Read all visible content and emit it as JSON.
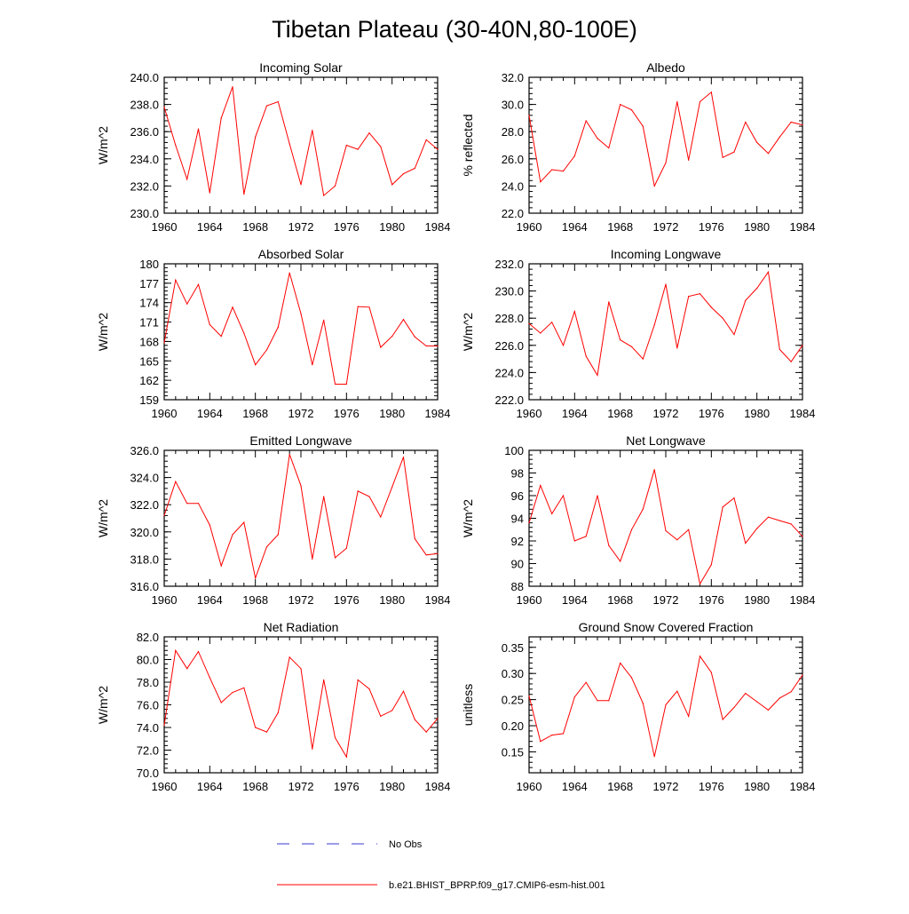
{
  "title": "Tibetan Plateau (30-40N,80-100E)",
  "legend": {
    "obs_label": "No Obs",
    "obs_color": "#3a3ad0",
    "model_label": "b.e21.BHIST_BPRP.f09_g17.CMIP6-esm-hist.001",
    "model_color": "#ff0000"
  },
  "chart_data": [
    {
      "type": "line",
      "title": "Incoming Solar",
      "ylabel": "W/m^2",
      "xlim": [
        1960,
        1984
      ],
      "x_ticks": [
        "1960",
        "1964",
        "1968",
        "1972",
        "1976",
        "1980",
        "1984"
      ],
      "ylim": [
        230,
        240
      ],
      "y_ticks": [
        "230.0",
        "232.0",
        "234.0",
        "236.0",
        "238.0",
        "240.0"
      ],
      "grid": false,
      "series": [
        {
          "name": "b.e21.BHIST_BPRP.f09_g17.CMIP6-esm-hist.001",
          "x": [
            1960,
            1961,
            1962,
            1963,
            1964,
            1965,
            1966,
            1967,
            1968,
            1969,
            1970,
            1971,
            1972,
            1973,
            1974,
            1975,
            1976,
            1977,
            1978,
            1979,
            1980,
            1981,
            1982,
            1983,
            1984
          ],
          "values": [
            237.8,
            235.0,
            232.5,
            236.2,
            231.5,
            237.0,
            239.3,
            231.4,
            235.6,
            237.9,
            238.2,
            235.1,
            232.1,
            236.1,
            231.3,
            232.0,
            235.0,
            234.7,
            235.9,
            234.9,
            232.1,
            232.9,
            233.3,
            235.4,
            234.7
          ]
        }
      ]
    },
    {
      "type": "line",
      "title": "Albedo",
      "ylabel": "% reflected",
      "xlim": [
        1960,
        1984
      ],
      "x_ticks": [
        "1960",
        "1964",
        "1968",
        "1972",
        "1976",
        "1980",
        "1984"
      ],
      "ylim": [
        22,
        32
      ],
      "y_ticks": [
        "22.0",
        "24.0",
        "26.0",
        "28.0",
        "30.0",
        "32.0"
      ],
      "grid": false,
      "series": [
        {
          "name": "b.e21.BHIST_BPRP.f09_g17.CMIP6-esm-hist.001",
          "x": [
            1960,
            1961,
            1962,
            1963,
            1964,
            1965,
            1966,
            1967,
            1968,
            1969,
            1970,
            1971,
            1972,
            1973,
            1974,
            1975,
            1976,
            1977,
            1978,
            1979,
            1980,
            1981,
            1982,
            1983,
            1984
          ],
          "values": [
            29.2,
            24.3,
            25.2,
            25.1,
            26.2,
            28.8,
            27.5,
            26.8,
            30.0,
            29.6,
            28.4,
            24.0,
            25.7,
            30.2,
            25.9,
            30.2,
            30.9,
            26.1,
            26.5,
            28.7,
            27.2,
            26.4,
            27.6,
            28.7,
            28.5
          ]
        }
      ]
    },
    {
      "type": "line",
      "title": "Absorbed Solar",
      "ylabel": "W/m^2",
      "xlim": [
        1960,
        1984
      ],
      "x_ticks": [
        "1960",
        "1964",
        "1968",
        "1972",
        "1976",
        "1980",
        "1984"
      ],
      "ylim": [
        159,
        180
      ],
      "y_ticks": [
        "159",
        "162",
        "165",
        "168",
        "171",
        "174",
        "177",
        "180"
      ],
      "grid": false,
      "series": [
        {
          "name": "b.e21.BHIST_BPRP.f09_g17.CMIP6-esm-hist.001",
          "x": [
            1960,
            1961,
            1962,
            1963,
            1964,
            1965,
            1966,
            1967,
            1968,
            1969,
            1970,
            1971,
            1972,
            1973,
            1974,
            1975,
            1976,
            1977,
            1978,
            1979,
            1980,
            1981,
            1982,
            1983,
            1984
          ],
          "values": [
            167.8,
            177.5,
            173.8,
            176.8,
            170.6,
            168.8,
            173.3,
            169.3,
            164.4,
            166.7,
            170.2,
            178.6,
            172.3,
            164.4,
            171.3,
            161.4,
            161.4,
            173.4,
            173.3,
            167.1,
            168.8,
            171.4,
            168.7,
            167.3,
            167.3
          ]
        }
      ]
    },
    {
      "type": "line",
      "title": "Incoming Longwave",
      "ylabel": "W/m^2",
      "xlim": [
        1960,
        1984
      ],
      "x_ticks": [
        "1960",
        "1964",
        "1968",
        "1972",
        "1976",
        "1980",
        "1984"
      ],
      "ylim": [
        222,
        232
      ],
      "y_ticks": [
        "222.0",
        "224.0",
        "226.0",
        "228.0",
        "230.0",
        "232.0"
      ],
      "grid": false,
      "series": [
        {
          "name": "b.e21.BHIST_BPRP.f09_g17.CMIP6-esm-hist.001",
          "x": [
            1960,
            1961,
            1962,
            1963,
            1964,
            1965,
            1966,
            1967,
            1968,
            1969,
            1970,
            1971,
            1972,
            1973,
            1974,
            1975,
            1976,
            1977,
            1978,
            1979,
            1980,
            1981,
            1982,
            1983,
            1984
          ],
          "values": [
            227.6,
            226.9,
            227.7,
            226.0,
            228.5,
            225.2,
            223.8,
            229.2,
            226.4,
            225.9,
            225.0,
            227.5,
            230.5,
            225.8,
            229.6,
            229.8,
            228.8,
            228.0,
            226.8,
            229.3,
            230.2,
            231.4,
            225.7,
            224.8,
            226.0
          ]
        }
      ]
    },
    {
      "type": "line",
      "title": "Emitted Longwave",
      "ylabel": "W/m^2",
      "xlim": [
        1960,
        1984
      ],
      "x_ticks": [
        "1960",
        "1964",
        "1968",
        "1972",
        "1976",
        "1980",
        "1984"
      ],
      "ylim": [
        316,
        326
      ],
      "y_ticks": [
        "316.0",
        "318.0",
        "320.0",
        "322.0",
        "324.0",
        "326.0"
      ],
      "grid": false,
      "series": [
        {
          "name": "b.e21.BHIST_BPRP.f09_g17.CMIP6-esm-hist.001",
          "x": [
            1960,
            1961,
            1962,
            1963,
            1964,
            1965,
            1966,
            1967,
            1968,
            1969,
            1970,
            1971,
            1972,
            1973,
            1974,
            1975,
            1976,
            1977,
            1978,
            1979,
            1980,
            1981,
            1982,
            1983,
            1984
          ],
          "values": [
            321.2,
            323.7,
            322.1,
            322.1,
            320.5,
            317.5,
            319.8,
            320.7,
            316.6,
            318.9,
            319.8,
            325.7,
            323.4,
            318.0,
            322.6,
            318.1,
            318.8,
            323.0,
            322.6,
            321.1,
            323.3,
            325.5,
            319.5,
            318.3,
            318.4
          ]
        }
      ]
    },
    {
      "type": "line",
      "title": "Net Longwave",
      "ylabel": "W/m^2",
      "xlim": [
        1960,
        1984
      ],
      "x_ticks": [
        "1960",
        "1964",
        "1968",
        "1972",
        "1976",
        "1980",
        "1984"
      ],
      "ylim": [
        88,
        100
      ],
      "y_ticks": [
        "88",
        "90",
        "92",
        "94",
        "96",
        "98",
        "100"
      ],
      "grid": false,
      "series": [
        {
          "name": "b.e21.BHIST_BPRP.f09_g17.CMIP6-esm-hist.001",
          "x": [
            1960,
            1961,
            1962,
            1963,
            1964,
            1965,
            1966,
            1967,
            1968,
            1969,
            1970,
            1971,
            1972,
            1973,
            1974,
            1975,
            1976,
            1977,
            1978,
            1979,
            1980,
            1981,
            1982,
            1983,
            1984
          ],
          "values": [
            93.6,
            96.9,
            94.4,
            96.0,
            92.0,
            92.4,
            96.0,
            91.6,
            90.2,
            93.0,
            94.8,
            98.3,
            92.9,
            92.1,
            93.0,
            88.2,
            89.9,
            95.0,
            95.8,
            91.8,
            93.1,
            94.1,
            93.8,
            93.5,
            92.4
          ]
        }
      ]
    },
    {
      "type": "line",
      "title": "Net Radiation",
      "ylabel": "W/m^2",
      "xlim": [
        1960,
        1984
      ],
      "x_ticks": [
        "1960",
        "1964",
        "1968",
        "1972",
        "1976",
        "1980",
        "1984"
      ],
      "ylim": [
        70,
        82
      ],
      "y_ticks": [
        "70.0",
        "72.0",
        "74.0",
        "76.0",
        "78.0",
        "80.0",
        "82.0"
      ],
      "grid": false,
      "series": [
        {
          "name": "b.e21.BHIST_BPRP.f09_g17.CMIP6-esm-hist.001",
          "x": [
            1960,
            1961,
            1962,
            1963,
            1964,
            1965,
            1966,
            1967,
            1968,
            1969,
            1970,
            1971,
            1972,
            1973,
            1974,
            1975,
            1976,
            1977,
            1978,
            1979,
            1980,
            1981,
            1982,
            1983,
            1984
          ],
          "values": [
            74.2,
            80.8,
            79.2,
            80.7,
            78.4,
            76.2,
            77.1,
            77.5,
            74.0,
            73.6,
            75.3,
            80.2,
            79.2,
            72.1,
            78.2,
            73.1,
            71.4,
            78.2,
            77.4,
            75.0,
            75.5,
            77.2,
            74.7,
            73.6,
            74.8
          ]
        }
      ]
    },
    {
      "type": "line",
      "title": "Ground Snow Covered Fraction",
      "ylabel": "unitless",
      "xlim": [
        1960,
        1984
      ],
      "x_ticks": [
        "1960",
        "1964",
        "1968",
        "1972",
        "1976",
        "1980",
        "1984"
      ],
      "ylim": [
        0.11,
        0.37
      ],
      "y_ticks": [
        "0.15",
        "0.20",
        "0.25",
        "0.30",
        "0.35"
      ],
      "grid": false,
      "series": [
        {
          "name": "b.e21.BHIST_BPRP.f09_g17.CMIP6-esm-hist.001",
          "x": [
            1960,
            1961,
            1962,
            1963,
            1964,
            1965,
            1966,
            1967,
            1968,
            1969,
            1970,
            1971,
            1972,
            1973,
            1974,
            1975,
            1976,
            1977,
            1978,
            1979,
            1980,
            1981,
            1982,
            1983,
            1984
          ],
          "values": [
            0.257,
            0.17,
            0.182,
            0.185,
            0.255,
            0.283,
            0.248,
            0.248,
            0.32,
            0.292,
            0.243,
            0.141,
            0.24,
            0.266,
            0.218,
            0.333,
            0.302,
            0.212,
            0.235,
            0.262,
            0.246,
            0.23,
            0.253,
            0.265,
            0.297
          ]
        }
      ]
    }
  ]
}
